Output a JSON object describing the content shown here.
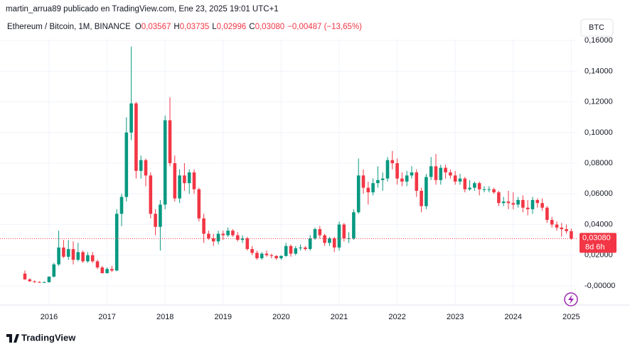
{
  "chart_data": {
    "type": "candlestick",
    "attribution": "martin_arrua89 publicado en TradingView.com, Ene 23, 2025 19:01 UTC+1",
    "legend": {
      "symbol": "Ethereum / Bitcoin, 1M, BINANCE",
      "o_label": "O",
      "o": "0,03567",
      "h_label": "H",
      "h": "0,03735",
      "l_label": "L",
      "l": "0,02996",
      "c_label": "C",
      "c": "0,03080",
      "change": "−0,00487 (−13,65%)"
    },
    "currency_button": "BTC",
    "brand": "TradingView",
    "up_color": "#089981",
    "down_color": "#f23645",
    "grid": true,
    "ylim": [
      -0.0125,
      0.161
    ],
    "yticks": [
      {
        "value": 0.16,
        "label": "0,16000"
      },
      {
        "value": 0.14,
        "label": "0,14000"
      },
      {
        "value": 0.12,
        "label": "0,12000"
      },
      {
        "value": 0.1,
        "label": "0,10000"
      },
      {
        "value": 0.08,
        "label": "0,08000"
      },
      {
        "value": 0.06,
        "label": "0,06000"
      },
      {
        "value": 0.04,
        "label": "0,04000"
      },
      {
        "value": 0.02,
        "label": "0,02000"
      },
      {
        "value": 0,
        "label": "-0,00000"
      }
    ],
    "last_price": {
      "value": 0.0308,
      "label": "0,03080"
    },
    "countdown": "8d 6h",
    "categories": [
      null,
      null,
      null,
      null,
      null,
      "2016",
      null,
      null,
      null,
      null,
      null,
      null,
      null,
      null,
      null,
      null,
      null,
      "2017",
      null,
      null,
      null,
      null,
      null,
      null,
      null,
      null,
      null,
      null,
      null,
      "2018",
      null,
      null,
      null,
      null,
      null,
      null,
      null,
      null,
      null,
      null,
      null,
      "2019",
      null,
      null,
      null,
      null,
      null,
      null,
      null,
      null,
      null,
      null,
      null,
      "2020",
      null,
      null,
      null,
      null,
      null,
      null,
      null,
      null,
      null,
      null,
      null,
      "2021",
      null,
      null,
      null,
      null,
      null,
      null,
      null,
      null,
      null,
      null,
      null,
      "2022",
      null,
      null,
      null,
      null,
      null,
      null,
      null,
      null,
      null,
      null,
      null,
      "2023",
      null,
      null,
      null,
      null,
      null,
      null,
      null,
      null,
      null,
      null,
      null,
      "2024",
      null,
      null,
      null,
      null,
      null,
      null,
      null,
      null,
      null,
      null,
      null,
      "2025"
    ],
    "ohlc": [
      [
        0.008,
        0.01,
        0.004,
        0.0042
      ],
      [
        0.0042,
        0.005,
        0.0026,
        0.003
      ],
      [
        0.003,
        0.0035,
        0.002,
        0.0025
      ],
      [
        0.0025,
        0.003,
        0.002,
        0.0024
      ],
      [
        0.0024,
        0.003,
        0.002,
        0.0024
      ],
      [
        0.0024,
        0.0062,
        0.0022,
        0.006
      ],
      [
        0.006,
        0.015,
        0.0055,
        0.014
      ],
      [
        0.014,
        0.036,
        0.013,
        0.025
      ],
      [
        0.025,
        0.03,
        0.018,
        0.019
      ],
      [
        0.019,
        0.03,
        0.017,
        0.024
      ],
      [
        0.024,
        0.029,
        0.014,
        0.017
      ],
      [
        0.017,
        0.028,
        0.016,
        0.022
      ],
      [
        0.022,
        0.023,
        0.015,
        0.016
      ],
      [
        0.016,
        0.022,
        0.015,
        0.02
      ],
      [
        0.02,
        0.022,
        0.015,
        0.016
      ],
      [
        0.016,
        0.017,
        0.011,
        0.012
      ],
      [
        0.012,
        0.013,
        0.008,
        0.0083
      ],
      [
        0.0083,
        0.012,
        0.008,
        0.011
      ],
      [
        0.011,
        0.013,
        0.009,
        0.01
      ],
      [
        0.01,
        0.05,
        0.0095,
        0.047
      ],
      [
        0.047,
        0.06,
        0.039,
        0.058
      ],
      [
        0.058,
        0.11,
        0.055,
        0.1
      ],
      [
        0.1,
        0.156,
        0.095,
        0.119
      ],
      [
        0.119,
        0.12,
        0.07,
        0.075
      ],
      [
        0.075,
        0.085,
        0.07,
        0.082
      ],
      [
        0.082,
        0.083,
        0.065,
        0.072
      ],
      [
        0.072,
        0.074,
        0.044,
        0.047
      ],
      [
        0.047,
        0.05,
        0.033,
        0.0385
      ],
      [
        0.0385,
        0.056,
        0.023,
        0.053
      ],
      [
        0.053,
        0.111,
        0.05,
        0.108
      ],
      [
        0.108,
        0.123,
        0.078,
        0.08
      ],
      [
        0.08,
        0.085,
        0.055,
        0.057
      ],
      [
        0.057,
        0.076,
        0.054,
        0.072
      ],
      [
        0.072,
        0.08,
        0.062,
        0.067
      ],
      [
        0.067,
        0.076,
        0.06,
        0.074
      ],
      [
        0.074,
        0.076,
        0.06,
        0.063
      ],
      [
        0.063,
        0.064,
        0.042,
        0.044
      ],
      [
        0.044,
        0.047,
        0.028,
        0.034
      ],
      [
        0.034,
        0.036,
        0.03,
        0.031
      ],
      [
        0.031,
        0.034,
        0.026,
        0.029
      ],
      [
        0.029,
        0.036,
        0.027,
        0.034
      ],
      [
        0.034,
        0.036,
        0.03,
        0.033
      ],
      [
        0.033,
        0.038,
        0.032,
        0.036
      ],
      [
        0.036,
        0.037,
        0.032,
        0.033
      ],
      [
        0.033,
        0.035,
        0.029,
        0.03
      ],
      [
        0.03,
        0.033,
        0.028,
        0.031
      ],
      [
        0.031,
        0.032,
        0.023,
        0.024
      ],
      [
        0.024,
        0.026,
        0.02,
        0.0215
      ],
      [
        0.0215,
        0.023,
        0.017,
        0.018
      ],
      [
        0.018,
        0.022,
        0.017,
        0.021
      ],
      [
        0.021,
        0.023,
        0.019,
        0.02
      ],
      [
        0.02,
        0.021,
        0.018,
        0.0195
      ],
      [
        0.0195,
        0.02,
        0.017,
        0.018
      ],
      [
        0.018,
        0.02,
        0.017,
        0.0195
      ],
      [
        0.0195,
        0.028,
        0.019,
        0.026
      ],
      [
        0.026,
        0.027,
        0.019,
        0.021
      ],
      [
        0.021,
        0.026,
        0.02,
        0.0245
      ],
      [
        0.0245,
        0.027,
        0.023,
        0.025
      ],
      [
        0.025,
        0.026,
        0.023,
        0.024
      ],
      [
        0.024,
        0.033,
        0.023,
        0.031
      ],
      [
        0.031,
        0.038,
        0.03,
        0.037
      ],
      [
        0.037,
        0.039,
        0.031,
        0.033
      ],
      [
        0.033,
        0.034,
        0.026,
        0.028
      ],
      [
        0.028,
        0.032,
        0.026,
        0.031
      ],
      [
        0.031,
        0.032,
        0.022,
        0.025
      ],
      [
        0.025,
        0.042,
        0.023,
        0.04
      ],
      [
        0.04,
        0.041,
        0.029,
        0.031
      ],
      [
        0.031,
        0.035,
        0.028,
        0.031
      ],
      [
        0.031,
        0.05,
        0.03,
        0.048
      ],
      [
        0.048,
        0.083,
        0.047,
        0.072
      ],
      [
        0.072,
        0.076,
        0.06,
        0.064
      ],
      [
        0.064,
        0.068,
        0.053,
        0.061
      ],
      [
        0.061,
        0.07,
        0.059,
        0.067
      ],
      [
        0.067,
        0.078,
        0.064,
        0.069
      ],
      [
        0.069,
        0.074,
        0.062,
        0.07
      ],
      [
        0.07,
        0.084,
        0.068,
        0.082
      ],
      [
        0.082,
        0.088,
        0.076,
        0.08
      ],
      [
        0.08,
        0.083,
        0.066,
        0.07
      ],
      [
        0.07,
        0.074,
        0.065,
        0.068
      ],
      [
        0.068,
        0.075,
        0.065,
        0.072
      ],
      [
        0.072,
        0.078,
        0.07,
        0.074
      ],
      [
        0.074,
        0.076,
        0.058,
        0.062
      ],
      [
        0.062,
        0.064,
        0.048,
        0.052
      ],
      [
        0.052,
        0.073,
        0.05,
        0.071
      ],
      [
        0.071,
        0.084,
        0.069,
        0.078
      ],
      [
        0.078,
        0.086,
        0.066,
        0.069
      ],
      [
        0.069,
        0.079,
        0.066,
        0.077
      ],
      [
        0.077,
        0.079,
        0.07,
        0.074
      ],
      [
        0.074,
        0.076,
        0.07,
        0.072
      ],
      [
        0.072,
        0.075,
        0.066,
        0.068
      ],
      [
        0.068,
        0.073,
        0.066,
        0.07
      ],
      [
        0.07,
        0.071,
        0.061,
        0.063
      ],
      [
        0.063,
        0.069,
        0.062,
        0.064
      ],
      [
        0.064,
        0.068,
        0.062,
        0.067
      ],
      [
        0.067,
        0.068,
        0.059,
        0.063
      ],
      [
        0.063,
        0.065,
        0.061,
        0.063
      ],
      [
        0.063,
        0.065,
        0.061,
        0.063
      ],
      [
        0.063,
        0.064,
        0.06,
        0.061
      ],
      [
        0.061,
        0.062,
        0.052,
        0.054
      ],
      [
        0.054,
        0.058,
        0.052,
        0.055
      ],
      [
        0.055,
        0.062,
        0.05,
        0.054
      ],
      [
        0.054,
        0.061,
        0.05,
        0.053
      ],
      [
        0.053,
        0.058,
        0.051,
        0.056
      ],
      [
        0.056,
        0.059,
        0.048,
        0.051
      ],
      [
        0.051,
        0.056,
        0.046,
        0.05
      ],
      [
        0.05,
        0.058,
        0.047,
        0.056
      ],
      [
        0.056,
        0.057,
        0.051,
        0.054
      ],
      [
        0.054,
        0.057,
        0.049,
        0.051
      ],
      [
        0.051,
        0.052,
        0.041,
        0.043
      ],
      [
        0.043,
        0.045,
        0.038,
        0.04
      ],
      [
        0.04,
        0.042,
        0.036,
        0.038
      ],
      [
        0.038,
        0.041,
        0.032,
        0.037
      ],
      [
        0.037,
        0.04,
        0.034,
        0.0357
      ],
      [
        0.03567,
        0.03735,
        0.02996,
        0.0308
      ]
    ]
  }
}
